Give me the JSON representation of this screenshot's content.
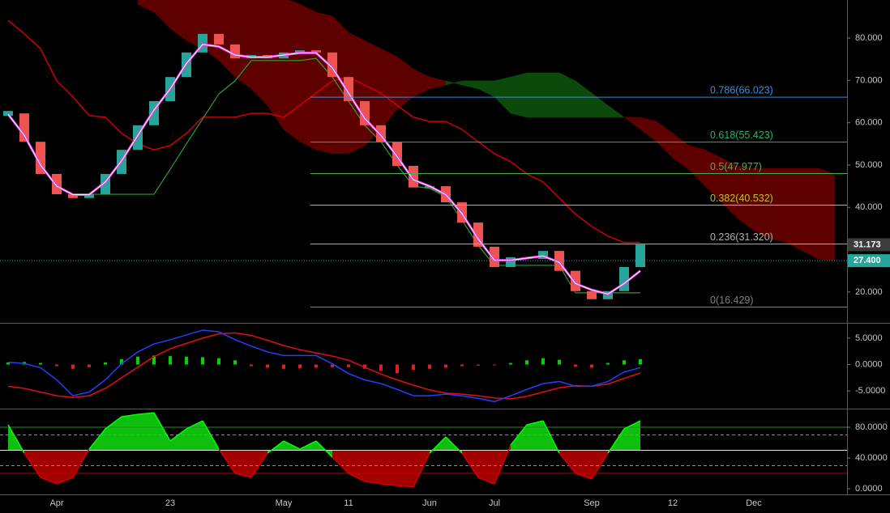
{
  "chart_data": [
    {
      "type": "renko",
      "categories": [
        null,
        null,
        null,
        "Apr",
        null,
        null,
        null,
        null,
        null,
        null,
        "23",
        null,
        null,
        null,
        null,
        null,
        null,
        "May",
        null,
        null,
        null,
        "11",
        null,
        null,
        null,
        null,
        "Jun",
        null,
        null,
        null,
        "Jul",
        null,
        null,
        null,
        null,
        null,
        "Sep",
        null,
        null,
        null,
        null,
        "12",
        null,
        null,
        null,
        null,
        "Dec",
        null,
        null,
        null,
        null,
        null
      ],
      "ylim": [
        12.9,
        89.0
      ],
      "yticks": [
        {
          "value": 20,
          "label": "20.000"
        },
        {
          "value": 40,
          "label": "40.000"
        },
        {
          "value": 50,
          "label": "50.000"
        },
        {
          "value": 60,
          "label": "60.000"
        },
        {
          "value": 70,
          "label": "70.000"
        },
        {
          "value": 80,
          "label": "80.000"
        }
      ],
      "price": {
        "up_color": "#26a69a",
        "down_color": "#ef5350",
        "values": [
          62.2,
          55.5,
          47.9,
          43.1,
          42.2,
          43.1,
          47.9,
          53.6,
          59.4,
          65.1,
          70.8,
          76.6,
          81.0,
          78.5,
          75.2,
          76.0,
          75.2,
          76.6,
          77.1,
          76.6,
          70.8,
          65.1,
          59.4,
          55.5,
          49.8,
          44.7,
          45.0,
          41.2,
          36.4,
          30.7,
          25.9,
          28.2,
          27.8,
          29.7,
          25.0,
          20.2,
          18.3,
          20.2,
          25.9,
          31.2,
          null,
          null,
          null,
          null,
          null,
          null,
          null,
          null,
          null,
          null,
          null,
          null
        ]
      },
      "baseline": {
        "color": "#d00000",
        "values": [
          84.2,
          81.0,
          77.5,
          69.9,
          66.1,
          61.7,
          61.3,
          57.5,
          55.0,
          53.6,
          54.6,
          57.5,
          61.3,
          61.3,
          61.3,
          62.2,
          62.2,
          61.3,
          64.1,
          67.0,
          69.9,
          70.8,
          68.9,
          67.0,
          64.1,
          61.3,
          60.3,
          60.3,
          58.4,
          55.5,
          52.7,
          50.8,
          47.9,
          46.0,
          42.2,
          38.4,
          35.5,
          33.2,
          31.7,
          31.7,
          null,
          null,
          null,
          null,
          null,
          null,
          null,
          null,
          null,
          null,
          null,
          null
        ]
      },
      "conversion": {
        "color": "#2ea02e",
        "values": [
          null,
          null,
          null,
          null,
          43.1,
          43.1,
          43.1,
          43.1,
          43.1,
          43.1,
          49.0,
          55.0,
          60.9,
          66.8,
          69.9,
          74.7,
          74.7,
          74.7,
          74.7,
          75.2,
          70.8,
          65.1,
          59.4,
          55.5,
          50.0,
          45.0,
          44.5,
          42.5,
          37.0,
          31.0,
          26.3,
          26.3,
          26.3,
          26.3,
          26.3,
          19.8,
          19.8,
          19.8,
          19.8,
          19.8,
          null,
          null,
          null,
          null,
          null,
          null,
          null,
          null,
          null,
          null,
          null,
          null
        ]
      },
      "ma": {
        "color": "#e040e0",
        "values": [
          62,
          57,
          50,
          45,
          43,
          43,
          46,
          51,
          57,
          63,
          68,
          74,
          78.5,
          78,
          76,
          75.5,
          75.5,
          76,
          76.5,
          76.5,
          73,
          67,
          61,
          57,
          52,
          46.5,
          45,
          43,
          38.5,
          32.5,
          27.5,
          27.5,
          28,
          28.5,
          27,
          22,
          20.5,
          19.5,
          22,
          25,
          null,
          null,
          null,
          null,
          null,
          null,
          null,
          null,
          null,
          null,
          null,
          null
        ]
      },
      "cloud": {
        "up_color": "#0b4a0b",
        "down_color": "#5e0000",
        "span_a": [
          null,
          null,
          null,
          null,
          null,
          null,
          null,
          null,
          88,
          86.1,
          82.3,
          79.4,
          77.5,
          74.7,
          70.8,
          68.0,
          64.1,
          58.4,
          55.5,
          53.6,
          52.7,
          52.7,
          54.6,
          58.4,
          63.2,
          66.1,
          68.0,
          68.9,
          69.9,
          69.9,
          69.9,
          70.8,
          71.8,
          71.8,
          71.8,
          69.9,
          67.0,
          64.1,
          61.3,
          58.4,
          55.5,
          51.7,
          48.9,
          45.0,
          41.2,
          37.4,
          34.5,
          32.6,
          31.7,
          29.7,
          27.8,
          27.5
        ],
        "span_b": [
          null,
          null,
          null,
          null,
          null,
          null,
          null,
          null,
          92,
          92,
          92,
          92,
          92,
          92,
          92,
          92,
          92,
          89.5,
          88.0,
          86.1,
          85.2,
          81.3,
          79.4,
          77.5,
          75.6,
          72.7,
          70.8,
          69.9,
          68.9,
          68.0,
          66.1,
          62.2,
          61.3,
          61.3,
          61.3,
          61.3,
          61.3,
          61.3,
          61.3,
          61.3,
          60.3,
          57.5,
          54.6,
          53.6,
          51.7,
          49.8,
          49.2,
          49.2,
          49.2,
          49.2,
          49.2,
          47.9
        ]
      },
      "fib_levels": [
        {
          "label": "0.786(66.023)",
          "value": 66.023,
          "color": "#3a8fd0"
        },
        {
          "label": "0.618(55.423)",
          "value": 55.423,
          "color": "#26b36a"
        },
        {
          "label": "0.5(47.977)",
          "value": 47.977,
          "color": "#4caf50"
        },
        {
          "label": "0.382(40.532)",
          "value": 40.532,
          "color": "#b8c41c"
        },
        {
          "label": "0.236(31.320)",
          "value": 31.32,
          "color": "#b0b0b0"
        },
        {
          "label": "0(16.429)",
          "value": 16.429,
          "color": "#808080"
        }
      ],
      "price_tags": [
        {
          "value": 31.173,
          "label": "31.173",
          "color": "#3c3c3c"
        },
        {
          "value": 27.4,
          "label": "27.400",
          "color": "#26a69a",
          "line": "dotted"
        }
      ]
    },
    {
      "type": "macd",
      "ylim": [
        -8.18,
        7.58
      ],
      "yticks": [
        {
          "value": 5,
          "label": "5.0000"
        },
        {
          "value": 0,
          "label": "0.0000"
        },
        {
          "value": -5,
          "label": "-5.0000"
        }
      ],
      "macd": {
        "color": "#2040ff",
        "values": [
          0.45,
          0.2,
          -0.6,
          -2.9,
          -5.9,
          -5.2,
          -2.9,
          0.15,
          2.4,
          3.9,
          4.7,
          5.6,
          6.5,
          6.2,
          4.7,
          3.5,
          2.4,
          1.7,
          1.7,
          1.7,
          0.15,
          -1.7,
          -2.9,
          -3.6,
          -4.7,
          -5.9,
          -5.9,
          -5.6,
          -5.9,
          -6.4,
          -7.0,
          -5.9,
          -4.7,
          -3.6,
          -3.2,
          -4.1,
          -4.1,
          -3.2,
          -1.4,
          -0.6,
          null,
          null,
          null,
          null,
          null,
          null,
          null,
          null,
          null,
          null,
          null,
          null
        ]
      },
      "signal": {
        "color": "#e01010",
        "values": [
          -4.1,
          -4.5,
          -5.2,
          -5.9,
          -6.2,
          -5.9,
          -4.5,
          -2.5,
          -0.5,
          1.5,
          3.0,
          4.0,
          5.0,
          5.8,
          6.0,
          5.5,
          4.6,
          3.6,
          2.8,
          2.2,
          1.6,
          0.8,
          -0.5,
          -1.8,
          -2.9,
          -3.9,
          -4.8,
          -5.4,
          -5.6,
          -5.9,
          -6.3,
          -6.5,
          -6.0,
          -5.2,
          -4.4,
          -4.0,
          -4.1,
          -3.7,
          -2.6,
          -1.6,
          null,
          null,
          null,
          null,
          null,
          null,
          null,
          null,
          null,
          null,
          null,
          null
        ]
      },
      "histogram": {
        "up_color": "#00d400",
        "down_color": "#e02020",
        "values": [
          0.4,
          0.5,
          0.3,
          -0.3,
          -0.8,
          -0.5,
          0.4,
          1.0,
          1.5,
          1.7,
          1.6,
          1.5,
          1.4,
          1.2,
          0.8,
          -0.3,
          -0.6,
          -0.8,
          -0.7,
          -0.6,
          -0.5,
          -0.5,
          -0.8,
          -1.2,
          -1.6,
          -1.0,
          -0.8,
          -0.6,
          -0.3,
          -0.2,
          -0.1,
          0.3,
          0.8,
          1.2,
          0.9,
          -0.4,
          -0.6,
          0.3,
          0.8,
          1.0,
          null,
          null,
          null,
          null,
          null,
          null,
          null,
          null,
          null,
          null,
          null,
          null
        ]
      }
    },
    {
      "type": "oscillator",
      "ylim": [
        -6.3,
        103.2
      ],
      "yticks": [
        {
          "value": 80,
          "label": "80.0000"
        },
        {
          "value": 40,
          "label": "40.0000"
        },
        {
          "value": 0,
          "label": "0.0000"
        }
      ],
      "midline": 50,
      "up_color": "#00ff00",
      "down_color": "#d00000",
      "up_fill": "#10e010",
      "down_fill": "#c00000",
      "levels": [
        {
          "value": 80,
          "color": "#1f8f1f",
          "dash": false
        },
        {
          "value": 70,
          "color": "#8a8a8a",
          "dash": true
        },
        {
          "value": 50,
          "color": "#e0e0e0",
          "dash": false
        },
        {
          "value": 30,
          "color": "#8a8a8a",
          "dash": true
        },
        {
          "value": 20,
          "color": "#c00000",
          "dash": false
        }
      ],
      "values": [
        83.2,
        46.3,
        14.7,
        6.3,
        14.7,
        51.6,
        77.9,
        93.7,
        96.8,
        98.9,
        62.1,
        77.9,
        88.4,
        51.6,
        20.0,
        14.7,
        46.3,
        62.1,
        51.6,
        62.1,
        41.1,
        20.0,
        9.5,
        6.3,
        4.2,
        2.1,
        46.3,
        67.4,
        46.3,
        14.7,
        6.3,
        56.8,
        83.2,
        88.4,
        46.3,
        20.0,
        12.6,
        46.3,
        77.9,
        88.4,
        null,
        null,
        null,
        null,
        null,
        null,
        null,
        null,
        null,
        null,
        null,
        null
      ]
    }
  ]
}
